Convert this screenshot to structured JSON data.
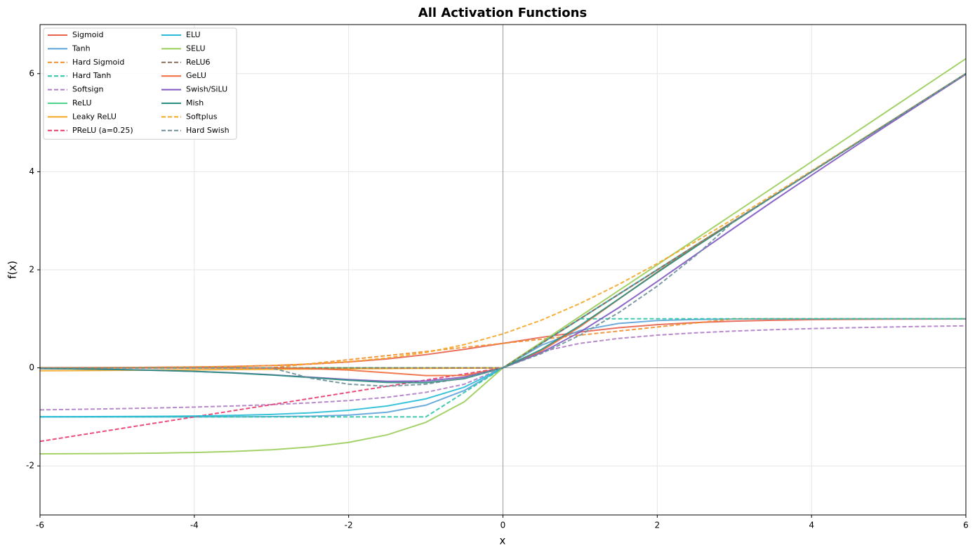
{
  "chart_data": {
    "type": "line",
    "title": "All Activation Functions",
    "x_label": "x",
    "y_label": "f(x)",
    "x": [
      -6,
      -5.5,
      -5,
      -4.5,
      -4,
      -3.5,
      -3,
      -2.5,
      -2,
      -1.5,
      -1,
      -0.5,
      0,
      0.5,
      1,
      1.5,
      2,
      2.5,
      3,
      3.5,
      4,
      4.5,
      5,
      5.5,
      6
    ],
    "xlim": [
      -6,
      6
    ],
    "xticks": [
      -6,
      -4,
      -2,
      0,
      2,
      4,
      6
    ],
    "ylim": [
      -3,
      7
    ],
    "yticks": [
      -2,
      0,
      2,
      4,
      6
    ],
    "grid": true,
    "legend": "upper left",
    "legend_columns": 2,
    "series": [
      {
        "name": "Sigmoid",
        "color": "#e8604c",
        "linestyle": "solid",
        "values": [
          0.0025,
          0.0041,
          0.0067,
          0.011,
          0.018,
          0.029,
          0.047,
          0.076,
          0.119,
          0.182,
          0.269,
          0.378,
          0.5,
          0.622,
          0.731,
          0.818,
          0.881,
          0.924,
          0.953,
          0.971,
          0.982,
          0.989,
          0.993,
          0.996,
          0.998
        ]
      },
      {
        "name": "Tanh",
        "color": "#5ba3d9",
        "linestyle": "solid",
        "values": [
          -1,
          -1,
          -0.9999,
          -0.9998,
          -0.9993,
          -0.9982,
          -0.995,
          -0.987,
          -0.964,
          -0.905,
          -0.762,
          -0.462,
          0,
          0.462,
          0.762,
          0.905,
          0.964,
          0.987,
          0.995,
          0.9982,
          0.9993,
          0.9998,
          0.9999,
          1,
          1
        ]
      },
      {
        "name": "Hard Sigmoid",
        "color": "#f28e2b",
        "linestyle": "dashed",
        "values": [
          0,
          0,
          0,
          0,
          0,
          0,
          0,
          0.083,
          0.167,
          0.25,
          0.333,
          0.417,
          0.5,
          0.583,
          0.667,
          0.75,
          0.833,
          0.917,
          1,
          1,
          1,
          1,
          1,
          1,
          1
        ]
      },
      {
        "name": "Hard Tanh",
        "color": "#2ec4a6",
        "linestyle": "dashed",
        "values": [
          -1,
          -1,
          -1,
          -1,
          -1,
          -1,
          -1,
          -1,
          -1,
          -1,
          -1,
          -0.5,
          0,
          0.5,
          1,
          1,
          1,
          1,
          1,
          1,
          1,
          1,
          1,
          1,
          1
        ]
      },
      {
        "name": "Softsign",
        "color": "#b07cc6",
        "linestyle": "dashed",
        "values": [
          -0.857,
          -0.846,
          -0.833,
          -0.818,
          -0.8,
          -0.778,
          -0.75,
          -0.714,
          -0.667,
          -0.6,
          -0.5,
          -0.333,
          0,
          0.333,
          0.5,
          0.6,
          0.667,
          0.714,
          0.75,
          0.778,
          0.8,
          0.818,
          0.833,
          0.846,
          0.857
        ]
      },
      {
        "name": "ReLU",
        "color": "#4cd48a",
        "linestyle": "solid",
        "values": [
          0,
          0,
          0,
          0,
          0,
          0,
          0,
          0,
          0,
          0,
          0,
          0,
          0,
          0.5,
          1,
          1.5,
          2,
          2.5,
          3,
          3.5,
          4,
          4.5,
          5,
          5.5,
          6
        ]
      },
      {
        "name": "Leaky ReLU",
        "color": "#f5a623",
        "linestyle": "solid",
        "values": [
          -0.06,
          -0.055,
          -0.05,
          -0.045,
          -0.04,
          -0.035,
          -0.03,
          -0.025,
          -0.02,
          -0.015,
          -0.01,
          -0.005,
          0,
          0.5,
          1,
          1.5,
          2,
          2.5,
          3,
          3.5,
          4,
          4.5,
          5,
          5.5,
          6
        ]
      },
      {
        "name": "PReLU (a=0.25)",
        "color": "#e8386d",
        "linestyle": "dashed",
        "values": [
          -1.5,
          -1.375,
          -1.25,
          -1.125,
          -1,
          -0.875,
          -0.75,
          -0.625,
          -0.5,
          -0.375,
          -0.25,
          -0.125,
          0,
          0.5,
          1,
          1.5,
          2,
          2.5,
          3,
          3.5,
          4,
          4.5,
          5,
          5.5,
          6
        ]
      },
      {
        "name": "ELU",
        "color": "#26bcd7",
        "linestyle": "solid",
        "values": [
          -0.9975,
          -0.9959,
          -0.9933,
          -0.9889,
          -0.9817,
          -0.9698,
          -0.9502,
          -0.9179,
          -0.8647,
          -0.7769,
          -0.6321,
          -0.3935,
          0,
          0.5,
          1,
          1.5,
          2,
          2.5,
          3,
          3.5,
          4,
          4.5,
          5,
          5.5,
          6
        ]
      },
      {
        "name": "SELU",
        "color": "#9acd5a",
        "linestyle": "solid",
        "values": [
          -1.7537,
          -1.7509,
          -1.7463,
          -1.7386,
          -1.7259,
          -1.705,
          -1.6706,
          -1.6138,
          -1.5202,
          -1.3659,
          -1.1113,
          -0.6918,
          0,
          0.525,
          1.051,
          1.576,
          2.101,
          2.627,
          3.152,
          3.677,
          4.203,
          4.728,
          5.254,
          5.779,
          6.304
        ]
      },
      {
        "name": "ReLU6",
        "color": "#8c6e5c",
        "linestyle": "dashed",
        "values": [
          0,
          0,
          0,
          0,
          0,
          0,
          0,
          0,
          0,
          0,
          0,
          0,
          0,
          0.5,
          1,
          1.5,
          2,
          2.5,
          3,
          3.5,
          4,
          4.5,
          5,
          5.5,
          6
        ]
      },
      {
        "name": "GeLU",
        "color": "#f06a3c",
        "linestyle": "solid",
        "values": [
          0,
          0,
          0,
          0,
          -0.0001,
          -0.0008,
          -0.004,
          -0.0155,
          -0.0455,
          -0.1002,
          -0.1587,
          -0.1543,
          0,
          0.3457,
          0.8413,
          1.3998,
          1.9545,
          2.4845,
          2.996,
          3.4992,
          3.9999,
          4.5,
          5,
          5.5,
          6
        ]
      },
      {
        "name": "Swish/SiLU",
        "color": "#7e57c2",
        "linestyle": "solid",
        "values": [
          -0.0148,
          -0.0224,
          -0.0335,
          -0.0497,
          -0.0719,
          -0.1014,
          -0.1423,
          -0.1896,
          -0.2384,
          -0.2736,
          -0.2689,
          -0.1888,
          0,
          0.3112,
          0.7311,
          1.2264,
          1.7616,
          2.3104,
          2.8577,
          3.3986,
          3.9281,
          4.4503,
          4.9665,
          5.4776,
          5.9852
        ]
      },
      {
        "name": "Mish",
        "color": "#2a8f80",
        "linestyle": "solid",
        "values": [
          -0.0149,
          -0.0224,
          -0.0336,
          -0.0497,
          -0.0726,
          -0.1041,
          -0.1456,
          -0.1968,
          -0.2525,
          -0.2981,
          -0.3034,
          -0.2208,
          0,
          0.3752,
          0.8651,
          1.4033,
          1.944,
          2.4714,
          2.9865,
          3.494,
          3.9974,
          4.4989,
          4.9996,
          5.4998,
          6
        ]
      },
      {
        "name": "Softplus",
        "color": "#f5a623",
        "linestyle": "dashed",
        "values": [
          0.0025,
          0.0041,
          0.0067,
          0.011,
          0.0182,
          0.0298,
          0.0486,
          0.0789,
          0.1269,
          0.2014,
          0.3133,
          0.4741,
          0.6931,
          0.9741,
          1.3133,
          1.7014,
          2.1269,
          2.5789,
          3.0486,
          3.5298,
          4.0182,
          4.511,
          5.0067,
          5.5041,
          6.0025
        ]
      },
      {
        "name": "Hard Swish",
        "color": "#6e8f9a",
        "linestyle": "dashed",
        "values": [
          0,
          0,
          0,
          0,
          0,
          0,
          0,
          -0.2083,
          -0.3333,
          -0.375,
          -0.3333,
          -0.2083,
          0,
          0.2917,
          0.6667,
          1.125,
          1.6667,
          2.2917,
          3,
          3.5,
          4,
          4.5,
          5,
          5.5,
          6
        ]
      }
    ]
  }
}
